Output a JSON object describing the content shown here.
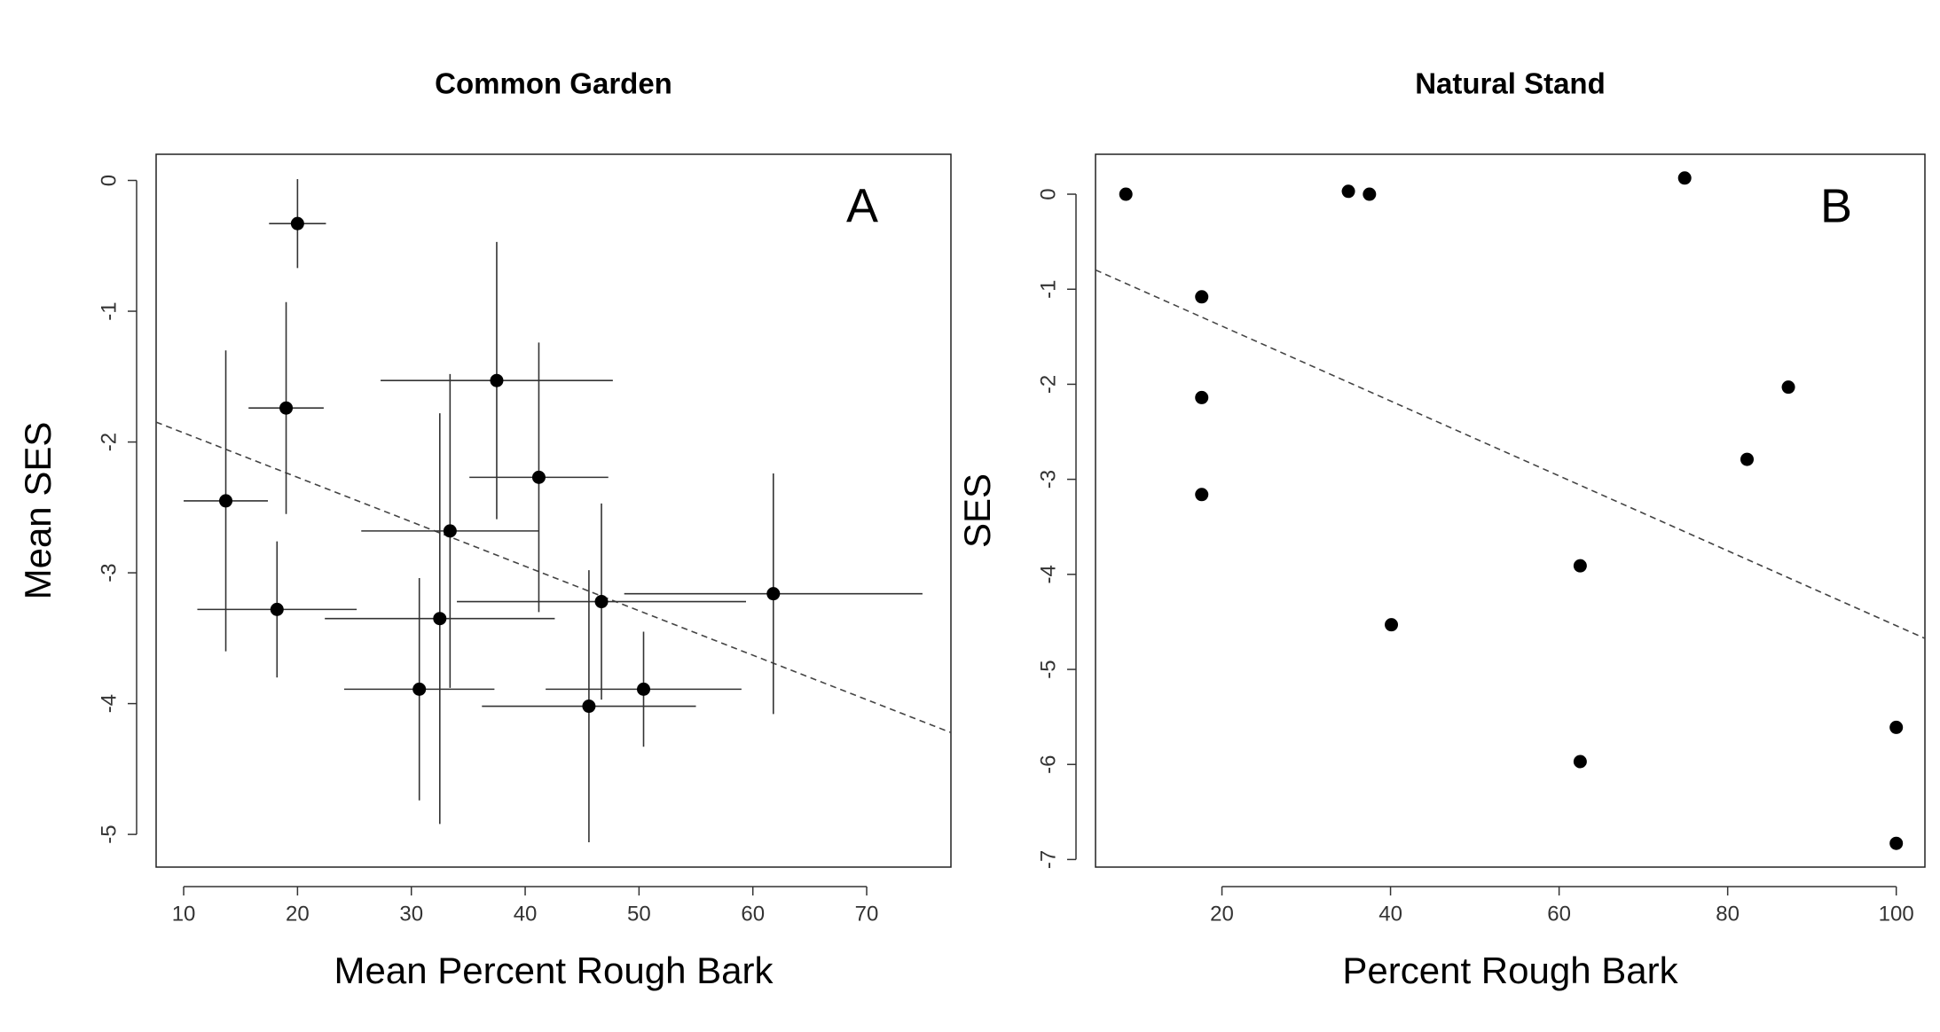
{
  "chart_data": [
    {
      "type": "scatter",
      "title": "Common Garden",
      "x_label": "Mean Percent Rough Bark",
      "y_label": "Mean SES",
      "annotation": "A",
      "x": [
        20,
        19.0,
        13.7,
        18.2,
        37.5,
        41.2,
        33.4,
        32.5,
        30.7,
        46.7,
        45.6,
        50.4,
        61.8
      ],
      "values": [
        -0.33,
        -1.74,
        -2.45,
        -3.28,
        -1.53,
        -2.27,
        -2.68,
        -3.35,
        -3.89,
        -3.22,
        -4.02,
        -3.89,
        -3.16
      ],
      "xerr": [
        2.5,
        3.3,
        3.7,
        7,
        10.2,
        6.1,
        7.8,
        10.1,
        6.6,
        12.7,
        9.4,
        8.6,
        13.1
      ],
      "yerr": [
        0.34,
        0.81,
        1.15,
        0.52,
        1.06,
        1.03,
        1.2,
        1.57,
        0.85,
        0.75,
        1.04,
        0.44,
        0.92
      ],
      "trend_line": {
        "intercept": -1.59,
        "slope": -0.034
      },
      "color": "#000000",
      "xlim": [
        7.58,
        77.4
      ],
      "ylim": [
        -5.25,
        0.2
      ],
      "xticks": [
        10,
        20,
        30,
        40,
        50,
        60,
        70
      ],
      "yticks": [
        0,
        -1,
        -2,
        -3,
        -4,
        -5
      ]
    },
    {
      "type": "scatter",
      "title": "Natural Stand",
      "x_label": "Percent Rough Bark",
      "y_label": "SES",
      "annotation": "B",
      "x": [
        8.6,
        35,
        37.5,
        74.9,
        17.6,
        17.6,
        17.6,
        87.2,
        82.3,
        62.5,
        40.1,
        62.5,
        100,
        100
      ],
      "values": [
        0,
        0.03,
        0,
        0.17,
        -1.08,
        -2.14,
        -3.16,
        -2.03,
        -2.79,
        -3.91,
        -4.53,
        -5.97,
        -5.61,
        -6.83
      ],
      "trend_line": {
        "intercept": -0.6,
        "slope": -0.0394
      },
      "color": "#000000",
      "xlim": [
        5.0,
        103.4
      ],
      "ylim": [
        -7.08,
        0.42
      ],
      "xticks": [
        20,
        40,
        60,
        80,
        100
      ],
      "yticks": [
        0,
        -1,
        -2,
        -3,
        -4,
        -5,
        -6,
        -7
      ]
    }
  ]
}
